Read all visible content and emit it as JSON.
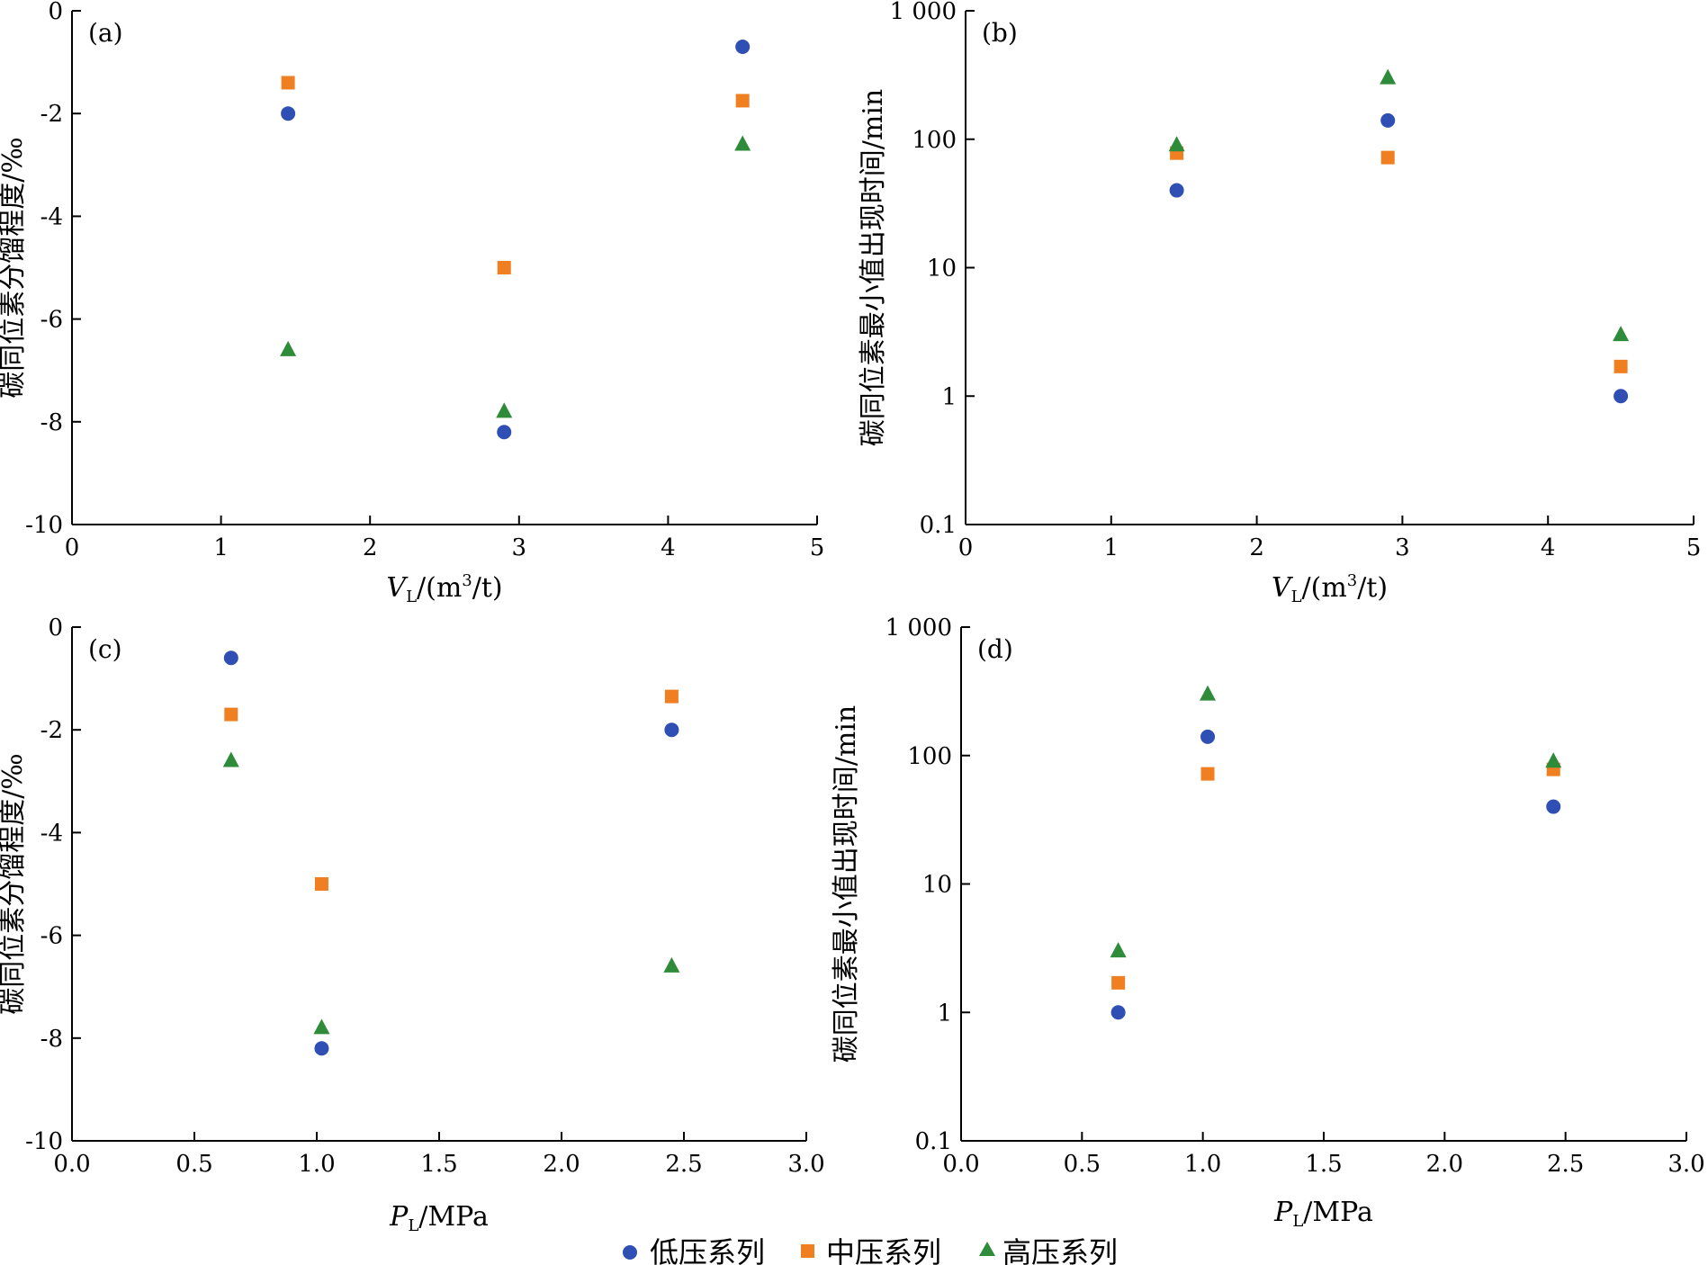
{
  "colors": {
    "low": "#2f4fb5",
    "mid": "#f07f22",
    "high": "#2e8b3a",
    "axis": "#000000"
  },
  "legend": {
    "low": "低压系列",
    "mid": "中压系列",
    "high": "高压系列"
  },
  "chart_data": [
    {
      "type": "scatter",
      "panel_label": "(a)",
      "xlabel_var": "V",
      "xlabel_sub": "L",
      "xlabel_unit": "/(m",
      "xlabel_sup": "3",
      "xlabel_tail": "/t)",
      "ylabel": "碳同位素分馏程度/‰",
      "xlim": [
        0,
        5
      ],
      "ylim": [
        -10,
        0
      ],
      "yscale": "linear",
      "xticks": [
        0,
        1,
        2,
        3,
        4,
        5
      ],
      "xtick_labels": [
        "0",
        "1",
        "2",
        "3",
        "4",
        "5"
      ],
      "yticks": [
        0,
        -2,
        -4,
        -6,
        -8,
        -10
      ],
      "ytick_labels": [
        "0",
        "-2",
        "-4",
        "-6",
        "-8",
        "-10"
      ],
      "series": [
        {
          "key": "low",
          "marker": "circle",
          "x": [
            1.45,
            2.9,
            4.5
          ],
          "y": [
            -2.0,
            -8.2,
            -0.7
          ]
        },
        {
          "key": "mid",
          "marker": "square",
          "x": [
            1.45,
            2.9,
            4.5
          ],
          "y": [
            -1.4,
            -5.0,
            -1.75
          ]
        },
        {
          "key": "high",
          "marker": "triangle",
          "x": [
            1.45,
            2.9,
            4.5
          ],
          "y": [
            -6.6,
            -7.8,
            -2.6
          ]
        }
      ]
    },
    {
      "type": "scatter",
      "panel_label": "(b)",
      "xlabel_var": "V",
      "xlabel_sub": "L",
      "xlabel_unit": "/(m",
      "xlabel_sup": "3",
      "xlabel_tail": "/t)",
      "ylabel": "碳同位素最小值出现时间/min",
      "xlim": [
        0,
        5
      ],
      "ylim": [
        0.1,
        1000
      ],
      "yscale": "log",
      "xticks": [
        0,
        1,
        2,
        3,
        4,
        5
      ],
      "xtick_labels": [
        "0",
        "1",
        "2",
        "3",
        "4",
        "5"
      ],
      "yticks": [
        1000,
        100,
        10,
        1,
        0.1
      ],
      "ytick_labels": [
        "1 000",
        "100",
        "10",
        "1",
        "0.1"
      ],
      "series": [
        {
          "key": "low",
          "marker": "circle",
          "x": [
            1.45,
            2.9,
            4.5
          ],
          "y": [
            40,
            140,
            1.0
          ]
        },
        {
          "key": "mid",
          "marker": "square",
          "x": [
            1.45,
            2.9,
            4.5
          ],
          "y": [
            78,
            72,
            1.7
          ]
        },
        {
          "key": "high",
          "marker": "triangle",
          "x": [
            1.45,
            2.9,
            4.5
          ],
          "y": [
            90,
            300,
            3.0
          ]
        }
      ]
    },
    {
      "type": "scatter",
      "panel_label": "(c)",
      "xlabel_var": "P",
      "xlabel_sub": "L",
      "xlabel_unit": "/MPa",
      "xlabel_sup": "",
      "xlabel_tail": "",
      "ylabel": "碳同位素分馏程度/‰",
      "xlim": [
        0,
        3
      ],
      "ylim": [
        -10,
        0
      ],
      "yscale": "linear",
      "xticks": [
        0,
        0.5,
        1,
        1.5,
        2,
        2.5,
        3
      ],
      "xtick_labels": [
        "0.0",
        "0.5",
        "1.0",
        "1.5",
        "2.0",
        "2.5",
        "3.0"
      ],
      "yticks": [
        0,
        -2,
        -4,
        -6,
        -8,
        -10
      ],
      "ytick_labels": [
        "0",
        "-2",
        "-4",
        "-6",
        "-8",
        "-10"
      ],
      "series": [
        {
          "key": "low",
          "marker": "circle",
          "x": [
            0.65,
            1.02,
            2.45
          ],
          "y": [
            -0.6,
            -8.2,
            -2.0
          ]
        },
        {
          "key": "mid",
          "marker": "square",
          "x": [
            0.65,
            1.02,
            2.45
          ],
          "y": [
            -1.7,
            -5.0,
            -1.35
          ]
        },
        {
          "key": "high",
          "marker": "triangle",
          "x": [
            0.65,
            1.02,
            2.45
          ],
          "y": [
            -2.6,
            -7.8,
            -6.6
          ]
        }
      ]
    },
    {
      "type": "scatter",
      "panel_label": "(d)",
      "xlabel_var": "P",
      "xlabel_sub": "L",
      "xlabel_unit": "/MPa",
      "xlabel_sup": "",
      "xlabel_tail": "",
      "ylabel": "碳同位素最小值出现时间/min",
      "xlim": [
        0,
        3
      ],
      "ylim": [
        0.1,
        1000
      ],
      "yscale": "log",
      "xticks": [
        0,
        0.5,
        1,
        1.5,
        2,
        2.5,
        3
      ],
      "xtick_labels": [
        "0.0",
        "0.5",
        "1.0",
        "1.5",
        "2.0",
        "2.5",
        "3.0"
      ],
      "yticks": [
        1000,
        100,
        10,
        1,
        0.1
      ],
      "ytick_labels": [
        "1 000",
        "100",
        "10",
        "1",
        "0.1"
      ],
      "series": [
        {
          "key": "low",
          "marker": "circle",
          "x": [
            0.65,
            1.02,
            2.45
          ],
          "y": [
            1.0,
            140,
            40
          ]
        },
        {
          "key": "mid",
          "marker": "square",
          "x": [
            0.65,
            1.02,
            2.45
          ],
          "y": [
            1.7,
            72,
            78
          ]
        },
        {
          "key": "high",
          "marker": "triangle",
          "x": [
            0.65,
            1.02,
            2.45
          ],
          "y": [
            3.0,
            300,
            90
          ]
        }
      ]
    }
  ]
}
